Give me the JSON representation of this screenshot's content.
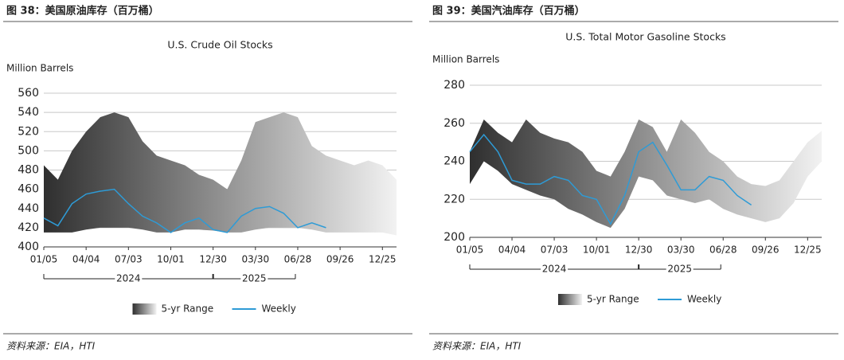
{
  "chart_data": [
    {
      "type": "range-line",
      "caption": "图 38：美国原油库存（百万桶）",
      "source": "资料来源：EIA，HTI",
      "title": "U.S. Crude Oil Stocks",
      "y_label": "Million Barrels",
      "categories": [
        "01/05",
        null,
        null,
        "04/04",
        null,
        null,
        "07/03",
        null,
        null,
        "10/01",
        null,
        null,
        "12/30",
        null,
        null,
        "03/30",
        null,
        null,
        "06/28",
        null,
        null,
        "09/26",
        null,
        null,
        "12/25",
        null
      ],
      "year_labels": [
        "2024",
        "2025"
      ],
      "band": {
        "name": "5-yr Range",
        "colors": [
          "#2f2f2f",
          "#f2f2f2"
        ],
        "upper": [
          485,
          470,
          500,
          520,
          535,
          540,
          535,
          510,
          495,
          490,
          485,
          475,
          470,
          460,
          490,
          530,
          535,
          540,
          535,
          505,
          495,
          490,
          485,
          490,
          485,
          470
        ],
        "lower": [
          415,
          415,
          415,
          418,
          420,
          420,
          420,
          418,
          415,
          415,
          418,
          418,
          417,
          415,
          415,
          418,
          420,
          420,
          420,
          418,
          415,
          415,
          415,
          415,
          415,
          412
        ]
      },
      "series": [
        {
          "name": "Weekly",
          "color": "#2e9bd6",
          "values": [
            430,
            422,
            445,
            455,
            458,
            460,
            445,
            432,
            425,
            415,
            425,
            430,
            418,
            415,
            432,
            440,
            442,
            435,
            420,
            425,
            420,
            null,
            null,
            null,
            null,
            null
          ]
        }
      ],
      "ylim": [
        400,
        560
      ],
      "yticks": [
        400,
        420,
        440,
        460,
        480,
        500,
        520,
        540,
        560
      ],
      "grid": true
    },
    {
      "type": "range-line",
      "caption": "图 39：美国汽油库存（百万桶）",
      "source": "资料来源：EIA，HTI",
      "title": "U.S. Total Motor Gasoline Stocks",
      "y_label": "Million Barrels",
      "categories": [
        "01/05",
        null,
        null,
        "04/04",
        null,
        null,
        "07/03",
        null,
        null,
        "10/01",
        null,
        null,
        "12/30",
        null,
        null,
        "03/30",
        null,
        null,
        "06/28",
        null,
        null,
        "09/26",
        null,
        null,
        "12/25",
        null
      ],
      "year_labels": [
        "2024",
        "2025"
      ],
      "band": {
        "name": "5-yr Range",
        "colors": [
          "#2f2f2f",
          "#f2f2f2"
        ],
        "upper": [
          245,
          262,
          255,
          250,
          262,
          255,
          252,
          250,
          245,
          235,
          232,
          245,
          262,
          258,
          245,
          262,
          255,
          245,
          240,
          232,
          228,
          227,
          230,
          240,
          250,
          256
        ],
        "lower": [
          228,
          240,
          235,
          228,
          225,
          222,
          220,
          215,
          212,
          208,
          205,
          215,
          232,
          230,
          222,
          220,
          218,
          220,
          215,
          212,
          210,
          208,
          210,
          218,
          232,
          240
        ]
      },
      "series": [
        {
          "name": "Weekly",
          "color": "#2e9bd6",
          "values": [
            245,
            254,
            245,
            230,
            228,
            228,
            232,
            230,
            222,
            220,
            207,
            222,
            245,
            250,
            238,
            225,
            225,
            232,
            230,
            222,
            217,
            null,
            null,
            null,
            null,
            null
          ]
        }
      ],
      "ylim": [
        200,
        280
      ],
      "yticks": [
        200,
        220,
        240,
        260,
        280
      ],
      "grid": true
    }
  ]
}
